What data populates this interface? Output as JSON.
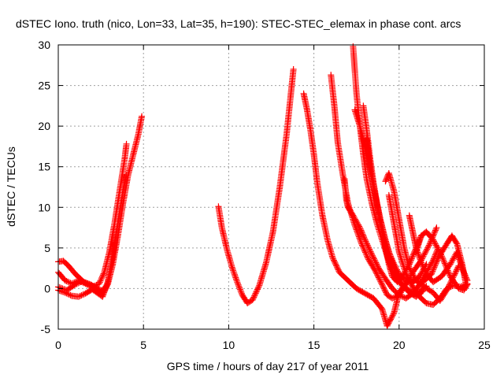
{
  "chart_data": {
    "type": "scatter",
    "title": "dSTEC Iono. truth (nico, Lon=33, Lat=35, h=190): STEC-STEC_elemax in phase cont. arcs",
    "xlabel": "GPS time / hours of day 217 of year 2011",
    "ylabel": "dSTEC  / TECUs",
    "xlim": [
      0,
      25
    ],
    "ylim": [
      -5,
      30
    ],
    "xticks": [
      0,
      5,
      10,
      15,
      20,
      25
    ],
    "yticks": [
      -5,
      0,
      5,
      10,
      15,
      20,
      25,
      30
    ],
    "grid": true,
    "marker": "+",
    "color": "#ff0000",
    "series": [
      {
        "points": [
          [
            0,
            3.3
          ],
          [
            0.3,
            3.4
          ],
          [
            0.6,
            2.8
          ],
          [
            1.0,
            1.8
          ],
          [
            1.5,
            0.8
          ],
          [
            2.0,
            0.3
          ],
          [
            2.4,
            -0.4
          ],
          [
            2.6,
            -0.8
          ],
          [
            2.9,
            0.5
          ],
          [
            3.2,
            3.0
          ],
          [
            3.5,
            6.5
          ],
          [
            3.8,
            10.5
          ],
          [
            4.1,
            14.0
          ],
          [
            4.4,
            16.5
          ],
          [
            4.7,
            19.0
          ],
          [
            4.9,
            21.2
          ]
        ]
      },
      {
        "points": [
          [
            0,
            2.0
          ],
          [
            0.4,
            1.0
          ],
          [
            0.8,
            0.6
          ],
          [
            1.2,
            1.0
          ],
          [
            1.6,
            0.6
          ],
          [
            2.0,
            0.2
          ],
          [
            2.4,
            0.6
          ],
          [
            2.7,
            2.0
          ],
          [
            3.0,
            4.5
          ],
          [
            3.3,
            8.0
          ],
          [
            3.6,
            12.0
          ],
          [
            3.9,
            16.0
          ],
          [
            4.0,
            17.8
          ]
        ]
      },
      {
        "points": [
          [
            0,
            -0.2
          ],
          [
            0.4,
            -0.5
          ],
          [
            0.8,
            -0.9
          ],
          [
            1.2,
            -1.0
          ],
          [
            1.6,
            -0.6
          ],
          [
            2.0,
            -0.1
          ],
          [
            2.4,
            -0.7
          ],
          [
            2.6,
            -1.0
          ],
          [
            2.9,
            0.8
          ],
          [
            3.2,
            4.0
          ],
          [
            3.5,
            8.0
          ],
          [
            3.8,
            12.0
          ],
          [
            4.0,
            14.0
          ]
        ]
      },
      {
        "points": [
          [
            0,
            0.2
          ],
          [
            0.5,
            -0.2
          ],
          [
            1.0,
            0.5
          ],
          [
            1.4,
            0.9
          ],
          [
            1.9,
            0.5
          ],
          [
            2.3,
            0.0
          ],
          [
            2.6,
            -0.3
          ],
          [
            2.8,
            0.3
          ]
        ]
      },
      {
        "points": [
          [
            9.4,
            10.1
          ],
          [
            9.6,
            7.5
          ],
          [
            9.9,
            4.8
          ],
          [
            10.2,
            2.6
          ],
          [
            10.5,
            0.8
          ],
          [
            10.8,
            -0.8
          ],
          [
            11.1,
            -1.8
          ],
          [
            11.4,
            -1.4
          ],
          [
            11.8,
            0.4
          ],
          [
            12.2,
            3.2
          ],
          [
            12.6,
            7.0
          ],
          [
            13.0,
            12.5
          ],
          [
            13.4,
            19.0
          ],
          [
            13.65,
            24.0
          ],
          [
            13.8,
            27.0
          ]
        ]
      },
      {
        "points": [
          [
            14.4,
            24.0
          ],
          [
            14.6,
            22.0
          ],
          [
            14.8,
            19.5
          ],
          [
            15.0,
            16.5
          ],
          [
            15.2,
            13.0
          ],
          [
            15.5,
            9.0
          ],
          [
            15.8,
            6.0
          ],
          [
            16.1,
            3.8
          ],
          [
            16.5,
            2.0
          ],
          [
            17.0,
            1.0
          ],
          [
            17.5,
            0.0
          ],
          [
            18.0,
            -0.6
          ],
          [
            18.5,
            -1.2
          ],
          [
            19.0,
            -2.5
          ],
          [
            19.3,
            -4.6
          ],
          [
            19.7,
            -3.0
          ],
          [
            20.0,
            -0.5
          ],
          [
            20.5,
            1.0
          ],
          [
            21.0,
            1.0
          ],
          [
            21.5,
            0.2
          ],
          [
            22.0,
            -0.5
          ],
          [
            22.4,
            -1.5
          ],
          [
            22.8,
            -0.2
          ],
          [
            23.2,
            1.5
          ],
          [
            23.5,
            2.8
          ]
        ]
      },
      {
        "points": [
          [
            16.0,
            26.3
          ],
          [
            16.2,
            22.5
          ],
          [
            16.4,
            18.0
          ],
          [
            16.7,
            14.0
          ],
          [
            17.0,
            10.5
          ],
          [
            17.4,
            7.8
          ],
          [
            17.8,
            5.5
          ],
          [
            18.2,
            3.6
          ],
          [
            18.6,
            2.2
          ],
          [
            19.0,
            0.5
          ],
          [
            19.3,
            -0.8
          ],
          [
            19.6,
            -1.2
          ],
          [
            20.0,
            -0.8
          ],
          [
            20.4,
            0.5
          ],
          [
            20.8,
            2.0
          ],
          [
            21.3,
            3.5
          ],
          [
            21.8,
            5.5
          ],
          [
            22.2,
            7.5
          ]
        ]
      },
      {
        "points": [
          [
            16.8,
            13.5
          ],
          [
            16.9,
            11.0
          ],
          [
            17.0,
            10.0
          ],
          [
            17.3,
            9.0
          ],
          [
            17.7,
            7.5
          ],
          [
            18.0,
            6.0
          ],
          [
            18.4,
            4.2
          ],
          [
            18.8,
            2.5
          ],
          [
            19.2,
            1.2
          ],
          [
            19.6,
            0.0
          ],
          [
            20.0,
            -0.8
          ],
          [
            20.4,
            -1.2
          ],
          [
            20.8,
            -0.6
          ],
          [
            21.2,
            0.5
          ],
          [
            21.6,
            2.0
          ],
          [
            22.0,
            3.5
          ],
          [
            22.3,
            5.0
          ]
        ]
      },
      {
        "points": [
          [
            17.3,
            29.8
          ],
          [
            17.5,
            24.0
          ],
          [
            17.7,
            20.0
          ],
          [
            17.9,
            16.5
          ],
          [
            18.1,
            13.5
          ],
          [
            18.4,
            10.5
          ],
          [
            18.7,
            8.0
          ],
          [
            19.0,
            6.0
          ],
          [
            19.3,
            4.0
          ],
          [
            19.6,
            2.2
          ],
          [
            20.0,
            0.8
          ],
          [
            20.4,
            0.0
          ],
          [
            20.8,
            -0.5
          ],
          [
            21.2,
            -0.4
          ],
          [
            21.6,
            0.3
          ]
        ]
      },
      {
        "points": [
          [
            17.4,
            22.0
          ],
          [
            17.7,
            20.0
          ],
          [
            18.0,
            17.5
          ],
          [
            18.3,
            14.5
          ],
          [
            18.6,
            11.5
          ],
          [
            18.9,
            8.5
          ],
          [
            19.2,
            6.0
          ],
          [
            19.5,
            3.8
          ],
          [
            19.8,
            2.0
          ],
          [
            20.2,
            0.5
          ],
          [
            20.6,
            -0.5
          ],
          [
            21.0,
            -1.0
          ],
          [
            21.4,
            -0.3
          ]
        ]
      },
      {
        "points": [
          [
            17.9,
            22.5
          ],
          [
            18.1,
            19.5
          ],
          [
            18.3,
            16.0
          ],
          [
            18.5,
            13.0
          ],
          [
            18.7,
            10.5
          ],
          [
            18.9,
            8.5
          ],
          [
            19.1,
            6.5
          ],
          [
            19.4,
            4.5
          ],
          [
            19.7,
            3.0
          ],
          [
            20.0,
            1.8
          ],
          [
            20.4,
            1.0
          ],
          [
            20.8,
            0.8
          ],
          [
            21.2,
            1.5
          ],
          [
            21.6,
            3.0
          ]
        ]
      },
      {
        "points": [
          [
            18.1,
            18.5
          ],
          [
            18.3,
            15.0
          ],
          [
            18.6,
            11.5
          ],
          [
            18.9,
            8.0
          ],
          [
            19.2,
            5.0
          ],
          [
            19.4,
            3.0
          ],
          [
            19.6,
            1.5
          ],
          [
            19.9,
            0.8
          ],
          [
            20.2,
            1.5
          ],
          [
            20.6,
            3.0
          ],
          [
            21.0,
            5.0
          ],
          [
            21.3,
            6.5
          ]
        ]
      },
      {
        "points": [
          [
            19.2,
            13.2
          ],
          [
            19.4,
            14.2
          ],
          [
            19.7,
            12.0
          ],
          [
            20.0,
            8.5
          ],
          [
            20.3,
            5.0
          ],
          [
            20.6,
            2.5
          ],
          [
            21.0,
            1.0
          ],
          [
            21.4,
            0.8
          ],
          [
            21.9,
            1.8
          ],
          [
            22.3,
            3.8
          ],
          [
            22.8,
            5.5
          ],
          [
            23.1,
            6.5
          ],
          [
            23.4,
            5.5
          ],
          [
            23.7,
            3.0
          ],
          [
            23.9,
            0.8
          ]
        ]
      },
      {
        "points": [
          [
            19.4,
            11.5
          ],
          [
            19.7,
            8.0
          ],
          [
            20.0,
            4.5
          ],
          [
            20.4,
            1.8
          ],
          [
            20.8,
            0.2
          ],
          [
            21.2,
            -1.0
          ],
          [
            21.6,
            -1.8
          ],
          [
            22.0,
            -2.0
          ],
          [
            22.4,
            -1.2
          ],
          [
            22.8,
            0.0
          ],
          [
            23.2,
            0.4
          ],
          [
            23.6,
            0.2
          ],
          [
            24.0,
            0.6
          ]
        ]
      },
      {
        "points": [
          [
            20.6,
            9.0
          ],
          [
            20.8,
            7.0
          ],
          [
            21.0,
            5.0
          ],
          [
            21.3,
            3.2
          ],
          [
            21.6,
            1.8
          ],
          [
            22.0,
            0.8
          ],
          [
            22.5,
            1.5
          ],
          [
            23.0,
            3.0
          ],
          [
            23.4,
            4.5
          ],
          [
            23.7,
            2.5
          ],
          [
            24.0,
            1.0
          ]
        ]
      },
      {
        "points": [
          [
            21.0,
            4.5
          ],
          [
            21.3,
            6.5
          ],
          [
            21.6,
            7.0
          ],
          [
            22.0,
            6.0
          ],
          [
            22.5,
            4.0
          ],
          [
            23.0,
            1.5
          ],
          [
            23.5,
            0.0
          ],
          [
            23.8,
            -0.2
          ],
          [
            24.0,
            0.5
          ]
        ]
      }
    ]
  }
}
